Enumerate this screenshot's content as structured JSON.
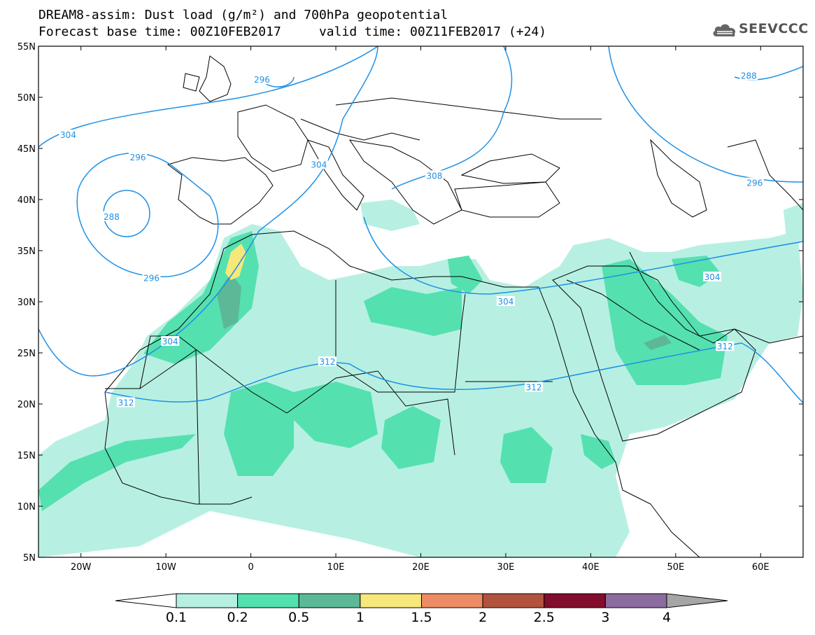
{
  "header": {
    "line1": "DREAM8-assim: Dust load (g/m²) and 700hPa geopotential",
    "line2": "Forecast base time: 00Z10FEB2017     valid time: 00Z11FEB2017 (+24)"
  },
  "logo": {
    "icon": "cloud-icon",
    "text": "SEEVCCC"
  },
  "map": {
    "lon_range": [
      -25,
      65
    ],
    "lat_range": [
      5,
      55
    ],
    "lon_ticks": [
      {
        "lon": -20,
        "label": "20W"
      },
      {
        "lon": -10,
        "label": "10W"
      },
      {
        "lon": 0,
        "label": "0"
      },
      {
        "lon": 10,
        "label": "10E"
      },
      {
        "lon": 20,
        "label": "20E"
      },
      {
        "lon": 30,
        "label": "30E"
      },
      {
        "lon": 40,
        "label": "40E"
      },
      {
        "lon": 50,
        "label": "50E"
      },
      {
        "lon": 60,
        "label": "60E"
      }
    ],
    "lat_ticks": [
      {
        "lat": 55,
        "label": "55N"
      },
      {
        "lat": 50,
        "label": "50N"
      },
      {
        "lat": 45,
        "label": "45N"
      },
      {
        "lat": 40,
        "label": "40N"
      },
      {
        "lat": 35,
        "label": "35N"
      },
      {
        "lat": 30,
        "label": "30N"
      },
      {
        "lat": 25,
        "label": "25N"
      },
      {
        "lat": 20,
        "label": "20N"
      },
      {
        "lat": 15,
        "label": "15N"
      },
      {
        "lat": 10,
        "label": "10N"
      },
      {
        "lat": 5,
        "label": "5N"
      }
    ],
    "contour_color": "#1e90e6",
    "contour_labels": [
      {
        "text": "288",
        "lon": -16.4,
        "lat": 38.3
      },
      {
        "text": "296",
        "lon": -13.3,
        "lat": 44.1
      },
      {
        "text": "296",
        "lon": -11.7,
        "lat": 32.3
      },
      {
        "text": "304",
        "lon": -21.5,
        "lat": 46.3
      },
      {
        "text": "304",
        "lon": -9.5,
        "lat": 26.1
      },
      {
        "text": "304",
        "lon": 8.0,
        "lat": 43.4
      },
      {
        "text": "296",
        "lon": 1.3,
        "lat": 51.7
      },
      {
        "text": "304",
        "lon": 30.0,
        "lat": 30.0
      },
      {
        "text": "304",
        "lon": 54.3,
        "lat": 32.4
      },
      {
        "text": "296",
        "lon": 59.3,
        "lat": 41.6
      },
      {
        "text": "288",
        "lon": 58.6,
        "lat": 52.1
      },
      {
        "text": "308",
        "lon": 21.6,
        "lat": 42.3
      },
      {
        "text": "312",
        "lon": 9.0,
        "lat": 24.1
      },
      {
        "text": "312",
        "lon": -14.7,
        "lat": 20.1
      },
      {
        "text": "312",
        "lon": 33.3,
        "lat": 21.6
      },
      {
        "text": "312",
        "lon": 55.8,
        "lat": 25.6
      }
    ]
  },
  "colorbar": {
    "colors": [
      "#b7f0e2",
      "#55e0b0",
      "#5cb896",
      "#f6e87a",
      "#ec8c64",
      "#b2533f",
      "#820d2c",
      "#8c6b9e"
    ],
    "under_color": "#ffffff",
    "over_color": "#a6a6a6",
    "labels": [
      "0.1",
      "0.2",
      "0.5",
      "1",
      "1.5",
      "2",
      "2.5",
      "3",
      "4"
    ]
  }
}
